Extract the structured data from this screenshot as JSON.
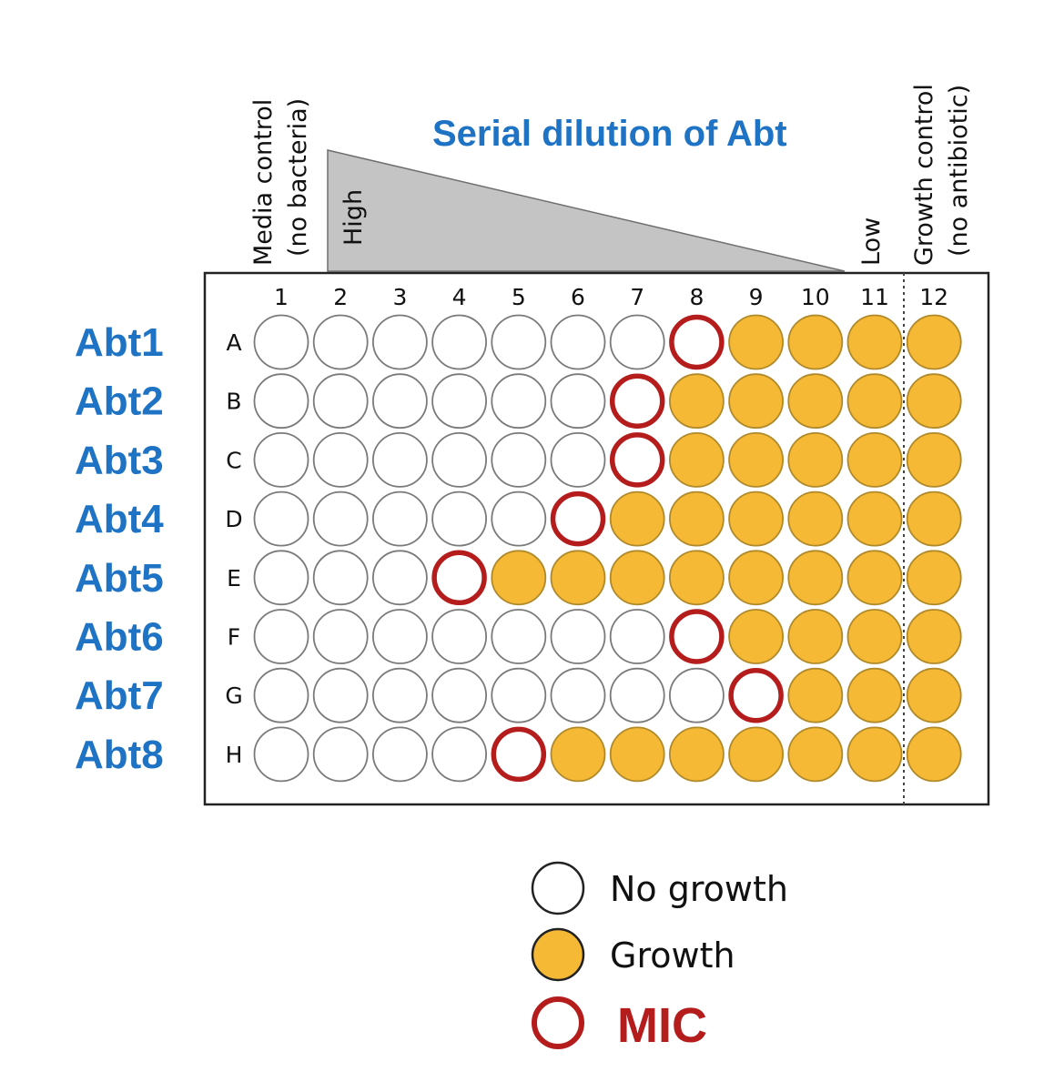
{
  "title": "Serial dilution of Abt",
  "gradient": {
    "high_label": "High",
    "low_label": "Low"
  },
  "controls": {
    "media_line1": "Media control",
    "media_line2": "(no bacteria)",
    "growth_line1": "Growth control",
    "growth_line2": "(no antibiotic)"
  },
  "columns": [
    "1",
    "2",
    "3",
    "4",
    "5",
    "6",
    "7",
    "8",
    "9",
    "10",
    "11",
    "12"
  ],
  "rows": [
    {
      "letter": "A",
      "label": "Abt1",
      "mic_column": 8
    },
    {
      "letter": "B",
      "label": "Abt2",
      "mic_column": 7
    },
    {
      "letter": "C",
      "label": "Abt3",
      "mic_column": 7
    },
    {
      "letter": "D",
      "label": "Abt4",
      "mic_column": 6
    },
    {
      "letter": "E",
      "label": "Abt5",
      "mic_column": 4
    },
    {
      "letter": "F",
      "label": "Abt6",
      "mic_column": 8
    },
    {
      "letter": "G",
      "label": "Abt7",
      "mic_column": 9
    },
    {
      "letter": "H",
      "label": "Abt8",
      "mic_column": 5
    }
  ],
  "legend": {
    "no_growth": "No growth",
    "growth": "Growth",
    "mic": "MIC"
  },
  "colors": {
    "blue": "#1f73c4",
    "growth_fill": "#f5b935",
    "growth_stroke": "#b08a2a",
    "mic_stroke": "#b51d1d",
    "well_stroke": "#7a7a7a",
    "triangle_fill": "#c4c4c4"
  }
}
